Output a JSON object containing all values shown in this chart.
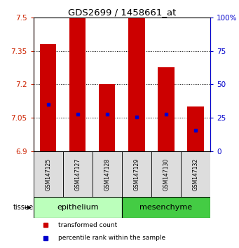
{
  "title": "GDS2699 / 1458661_at",
  "samples": [
    "GSM147125",
    "GSM147127",
    "GSM147128",
    "GSM147129",
    "GSM147130",
    "GSM147132"
  ],
  "bar_tops": [
    7.38,
    7.5,
    7.2,
    7.5,
    7.275,
    7.1
  ],
  "bar_bottom": 6.9,
  "percentile_values": [
    7.11,
    7.065,
    7.065,
    7.055,
    7.065,
    6.995
  ],
  "ylim_left": [
    6.9,
    7.5
  ],
  "ylim_right": [
    0,
    100
  ],
  "yticks_left": [
    6.9,
    7.05,
    7.2,
    7.35,
    7.5
  ],
  "yticks_right": [
    0,
    25,
    50,
    75,
    100
  ],
  "ytick_labels_left": [
    "6.9",
    "7.05",
    "7.2",
    "7.35",
    "7.5"
  ],
  "ytick_labels_right": [
    "0",
    "25",
    "50",
    "75",
    "100%"
  ],
  "grid_values": [
    7.05,
    7.2,
    7.35
  ],
  "bar_color": "#CC0000",
  "dot_color": "#0000CC",
  "left_axis_color": "#CC2200",
  "right_axis_color": "#0000CC",
  "epithelium_color": "#bbffbb",
  "mesenchyme_color": "#44cc44",
  "sample_box_color": "#dddddd",
  "tissue_groups": [
    {
      "label": "epithelium",
      "start": 0,
      "end": 2
    },
    {
      "label": "mesenchyme",
      "start": 3,
      "end": 5
    }
  ],
  "legend_items": [
    {
      "label": "transformed count",
      "color": "#CC0000"
    },
    {
      "label": "percentile rank within the sample",
      "color": "#0000CC"
    }
  ],
  "bar_width": 0.55
}
